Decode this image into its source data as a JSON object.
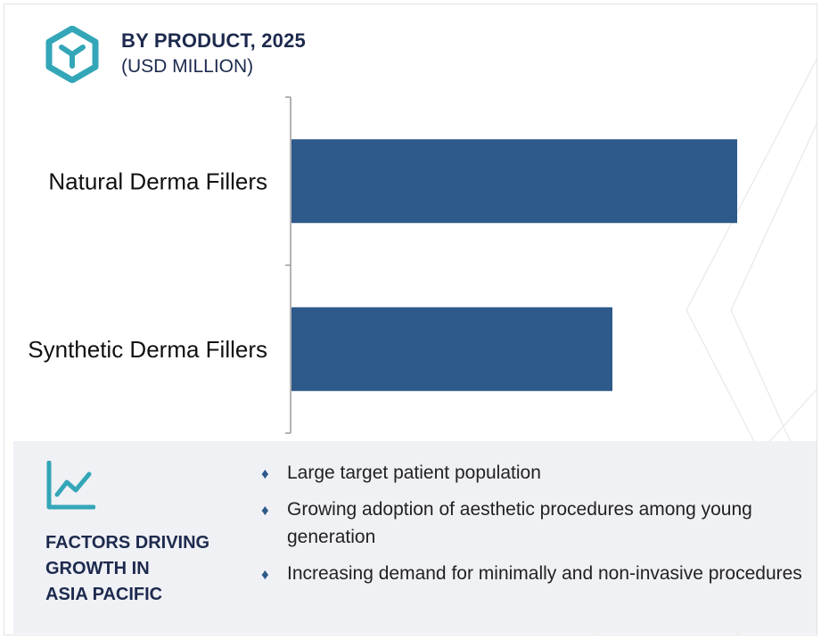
{
  "header": {
    "title": "BY PRODUCT, 2025",
    "subtitle": "(USD MILLION)"
  },
  "icons": {
    "logo": "hexagon-logo-icon",
    "factors": "trend-chart-icon",
    "bullet": "diamond-bullet-icon"
  },
  "colors": {
    "bar": "#2d5a8a",
    "title": "#1d2a4e",
    "logo": "#33a6b8",
    "panel_bg": "#f0f1f5"
  },
  "chart_data": {
    "type": "bar",
    "orientation": "horizontal",
    "title": "BY PRODUCT, 2025",
    "subtitle": "(USD MILLION)",
    "categories": [
      "Natural Derma Fillers",
      "Synthetic Derma Fillers"
    ],
    "values": [
      100,
      72
    ],
    "xlim": [
      0,
      100
    ],
    "value_axis_shown": false,
    "grid": false,
    "legend": "none"
  },
  "factors": {
    "title": "FACTORS DRIVING\nGROWTH IN\nASIA PACIFIC",
    "bullet_glyph": "♦",
    "items": [
      "Large target patient population",
      "Growing adoption of aesthetic procedures among  young generation",
      "Increasing demand for minimally and non-invasive procedures"
    ]
  }
}
